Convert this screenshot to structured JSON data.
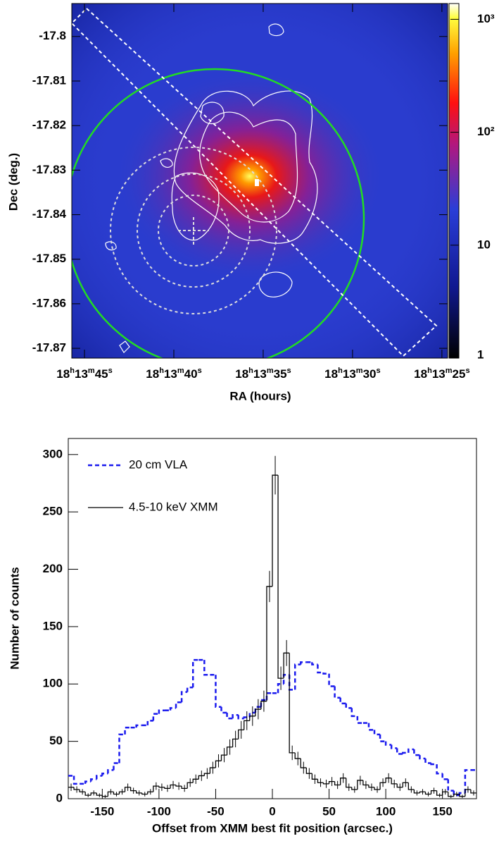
{
  "chart_data": [
    {
      "type": "heatmap",
      "xlabel": "RA (hours)",
      "ylabel": "Dec (deg.)",
      "xlim": [
        18.2293639,
        18.2235222
      ],
      "xticks": [
        {
          "value": 18.2291667,
          "label": "18h13m45s"
        },
        {
          "value": 18.2277778,
          "label": "18h13m40s"
        },
        {
          "value": 18.2263889,
          "label": "18h13m35s"
        },
        {
          "value": 18.225,
          "label": "18h13m30s"
        },
        {
          "value": 18.2236111,
          "label": "18h13m25s"
        }
      ],
      "ylim": [
        -17.8722,
        -17.7926
      ],
      "yticks": [
        -17.87,
        -17.86,
        -17.85,
        -17.84,
        -17.83,
        -17.82,
        -17.81,
        -17.8
      ],
      "colorbar": {
        "log": true,
        "zlim": [
          1,
          1380
        ],
        "zticks": [
          1,
          10,
          {
            "value": 100,
            "label": "10²"
          },
          {
            "value": 1000,
            "label": "10³"
          }
        ]
      }
    },
    {
      "type": "histogram",
      "xlabel": "Offset from XMM best fit position (arcsec.)",
      "ylabel": "Number of counts",
      "xlim": [
        -180,
        180
      ],
      "xticks": [
        -150,
        -100,
        -50,
        0,
        50,
        100,
        150
      ],
      "ylim": [
        0,
        314
      ],
      "yticks": [
        0,
        50,
        100,
        150,
        200,
        250,
        300
      ],
      "bins": [
        -180,
        -175,
        -170,
        -165,
        -160,
        -155,
        -150,
        -145,
        -140,
        -135,
        -130,
        -125,
        -120,
        -115,
        -110,
        -105,
        -100,
        -95,
        -90,
        -85,
        -80,
        -75,
        -70,
        -65,
        -60,
        -55,
        -50,
        -45,
        -40,
        -35,
        -30,
        -25,
        -20,
        -15,
        -10,
        -5,
        0,
        5,
        10,
        15,
        20,
        25,
        30,
        35,
        40,
        45,
        50,
        55,
        60,
        65,
        70,
        75,
        80,
        85,
        90,
        95,
        100,
        105,
        110,
        115,
        120,
        125,
        130,
        135,
        140,
        145,
        150,
        155,
        160,
        165,
        170,
        175,
        180
      ],
      "series": [
        {
          "name": "20 cm VLA",
          "color": "#1a1aee",
          "line_style": "dashed",
          "values": [
            20,
            13,
            13,
            15,
            17,
            20,
            22,
            25,
            31,
            56,
            62,
            62,
            64,
            64,
            68,
            74,
            77,
            77,
            79,
            84,
            93,
            97,
            121,
            121,
            108,
            108,
            80,
            75,
            70,
            73,
            70,
            71,
            75,
            80,
            86,
            92,
            92,
            100,
            108,
            95,
            117,
            119,
            119,
            117,
            110,
            109,
            98,
            88,
            83,
            79,
            72,
            66,
            66,
            60,
            56,
            50,
            47,
            44,
            39,
            40,
            43,
            38,
            35,
            31,
            30,
            22,
            17,
            7,
            3,
            5,
            25,
            25
          ]
        },
        {
          "name": "4.5-10 keV XMM",
          "color": "#000000",
          "line_style": "solid",
          "values": [
            10,
            8,
            6,
            3,
            5,
            3,
            2,
            6,
            4,
            6,
            10,
            7,
            5,
            4,
            6,
            11,
            10,
            9,
            12,
            11,
            9,
            14,
            17,
            20,
            22,
            27,
            33,
            38,
            45,
            52,
            60,
            68,
            72,
            78,
            85,
            185,
            282,
            105,
            127,
            40,
            35,
            27,
            22,
            17,
            14,
            13,
            15,
            12,
            18,
            10,
            8,
            16,
            12,
            10,
            8,
            14,
            18,
            13,
            10,
            14,
            8,
            5,
            6,
            4,
            7,
            3,
            6,
            2,
            4,
            2,
            8,
            5
          ],
          "errors": [
            3.2,
            2.8,
            2.4,
            1.7,
            2.2,
            1.7,
            1.4,
            2.4,
            2,
            2.4,
            3.2,
            2.6,
            2.2,
            2,
            2.4,
            3.3,
            3.2,
            3,
            3.5,
            3.3,
            3,
            3.7,
            4.1,
            4.5,
            4.7,
            5.2,
            5.7,
            6.2,
            6.7,
            7.2,
            7.7,
            8.2,
            8.5,
            8.8,
            9.2,
            13.6,
            16.8,
            10.2,
            11.3,
            6.3,
            5.9,
            5.2,
            4.7,
            4.1,
            3.7,
            3.6,
            3.9,
            3.5,
            4.2,
            3.2,
            2.8,
            4,
            3.5,
            3.2,
            2.8,
            3.7,
            4.2,
            3.6,
            3.2,
            3.7,
            2.8,
            2.2,
            2.4,
            2,
            2.6,
            1.7,
            2.4,
            1.4,
            2,
            1.4,
            2.8,
            2.2
          ]
        }
      ]
    }
  ]
}
